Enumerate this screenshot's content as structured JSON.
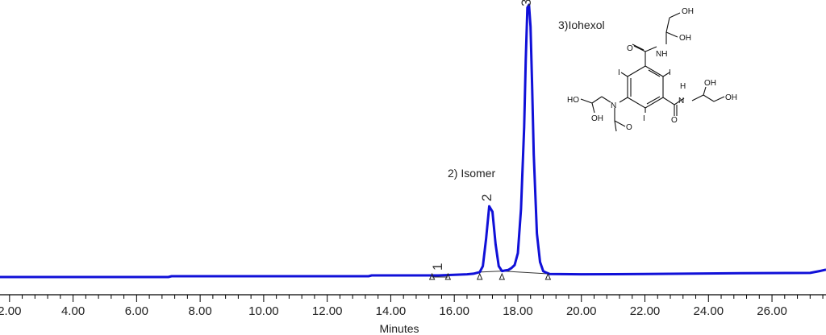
{
  "chart_data": {
    "type": "line",
    "xlabel": "Minutes",
    "xlim": [
      1.7,
      27.7
    ],
    "ylim": [
      0,
      100
    ],
    "x_ticks": [
      "2.00",
      "4.00",
      "6.00",
      "8.00",
      "10.00",
      "12.00",
      "14.00",
      "16.00",
      "18.00",
      "20.00",
      "22.00",
      "24.00",
      "26.00"
    ],
    "series": [
      {
        "color": "#1010d8",
        "x": [
          1.7,
          7.0,
          7.1,
          13.3,
          13.4,
          15.5,
          16.0,
          16.4,
          16.6,
          16.8,
          16.9,
          17.0,
          17.1,
          17.2,
          17.3,
          17.4,
          17.5,
          17.6,
          17.7,
          17.8,
          17.9,
          18.0,
          18.1,
          18.2,
          18.25,
          18.3,
          18.35,
          18.4,
          18.45,
          18.5,
          18.6,
          18.7,
          18.8,
          18.9,
          19.0,
          20.0,
          22.0,
          25.0,
          27.2,
          27.5,
          27.7
        ],
        "y": [
          0.0,
          0.0,
          0.3,
          0.3,
          0.6,
          0.6,
          0.8,
          1.0,
          1.2,
          1.8,
          4.0,
          14.0,
          26.0,
          24.0,
          12.0,
          4.0,
          2.2,
          2.4,
          2.6,
          3.3,
          4.4,
          8.8,
          25.0,
          55.0,
          80.0,
          99.0,
          100.0,
          92.0,
          70.0,
          45.0,
          16.0,
          5.5,
          2.1,
          1.6,
          1.1,
          1.0,
          1.1,
          1.4,
          1.5,
          2.2,
          2.7
        ]
      }
    ],
    "peaks": [
      {
        "label": "1",
        "x": 15.55
      },
      {
        "label": "2",
        "x": 17.1
      },
      {
        "label": "3",
        "x": 18.35
      }
    ],
    "annotations": {
      "isomer": "2) Isomer",
      "iohexol": "3)Iohexol"
    },
    "baseline_markers_x": [
      15.3,
      15.8,
      16.8,
      17.5,
      18.95
    ],
    "structure_atoms": {
      "OH": "OH",
      "HO": "HO",
      "NH": "NH",
      "N": "N",
      "H": "H",
      "I": "I",
      "O": "O"
    }
  }
}
